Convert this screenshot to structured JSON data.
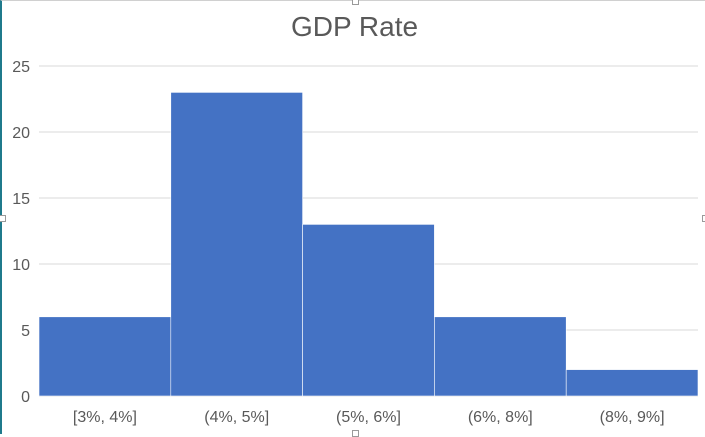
{
  "chart_data": {
    "type": "bar",
    "title": "GDP Rate",
    "categories": [
      "[3%, 4%]",
      "(4%, 5%]",
      "(5%, 6%]",
      "(6%, 8%]",
      "(8%, 9%]"
    ],
    "values": [
      6,
      23,
      13,
      6,
      2
    ],
    "ylim": [
      0,
      25
    ],
    "yticks": [
      0,
      5,
      10,
      15,
      20,
      25
    ],
    "xlabel": "",
    "ylabel": "",
    "grid": true,
    "legend": "none",
    "bar_color": "#4472c4",
    "gap_width": 0
  }
}
